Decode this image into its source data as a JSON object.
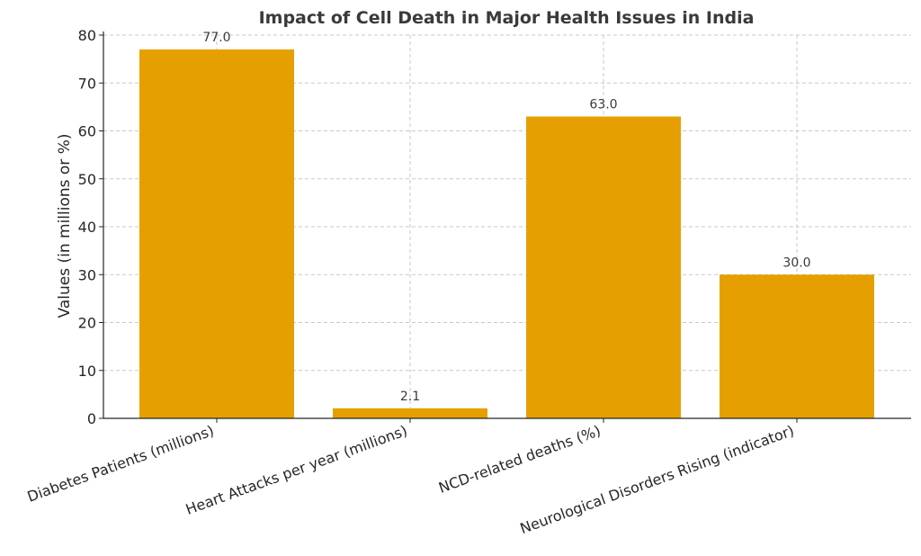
{
  "chart_data": {
    "type": "bar",
    "title": "Impact of Cell Death in Major Health Issues in India",
    "xlabel": "",
    "ylabel": "Values (in millions or %)",
    "categories": [
      "Diabetes Patients (millions)",
      "Heart Attacks per year (millions)",
      "NCD-related deaths (%)",
      "Neurological Disorders Rising (indicator)"
    ],
    "values": [
      77.0,
      2.1,
      63.0,
      30.0
    ],
    "data_labels": [
      "77.0",
      "2.1",
      "63.0",
      "30.0"
    ],
    "ylim": [
      0,
      80
    ],
    "yticks": [
      0,
      10,
      20,
      30,
      40,
      50,
      60,
      70,
      80
    ],
    "grid": true,
    "bar_color": "#E5A000"
  }
}
